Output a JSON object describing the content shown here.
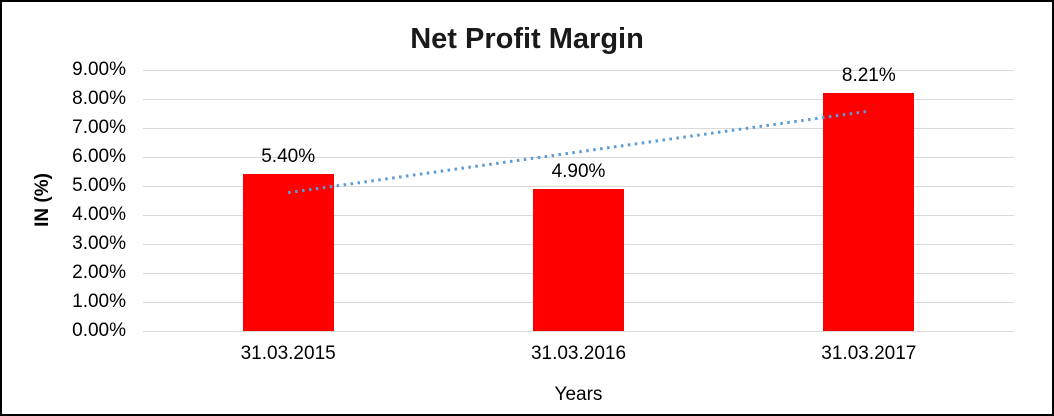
{
  "chart_data": {
    "type": "bar",
    "title": "Net Profit Margin",
    "xlabel": "Years",
    "ylabel": "IN (%)",
    "categories": [
      "31.03.2015",
      "31.03.2016",
      "31.03.2017"
    ],
    "values": [
      5.4,
      4.9,
      8.21
    ],
    "data_labels": [
      "5.40%",
      "4.90%",
      "8.21%"
    ],
    "ylim": [
      0,
      9
    ],
    "ytick_labels": [
      "0.00%",
      "1.00%",
      "2.00%",
      "3.00%",
      "4.00%",
      "5.00%",
      "6.00%",
      "7.00%",
      "8.00%",
      "9.00%"
    ],
    "grid": true,
    "legend": "none",
    "trendline": {
      "style": "dotted",
      "start_value": 4.77,
      "end_value": 7.58
    },
    "colors": {
      "bar": "#FF0000",
      "trendline": "#5B9BD5",
      "gridline": "#D9D9D9",
      "title_text": "#1A1A1A",
      "axis_text": "#000000",
      "background": "#FFFFFF",
      "border": "#000000"
    }
  }
}
